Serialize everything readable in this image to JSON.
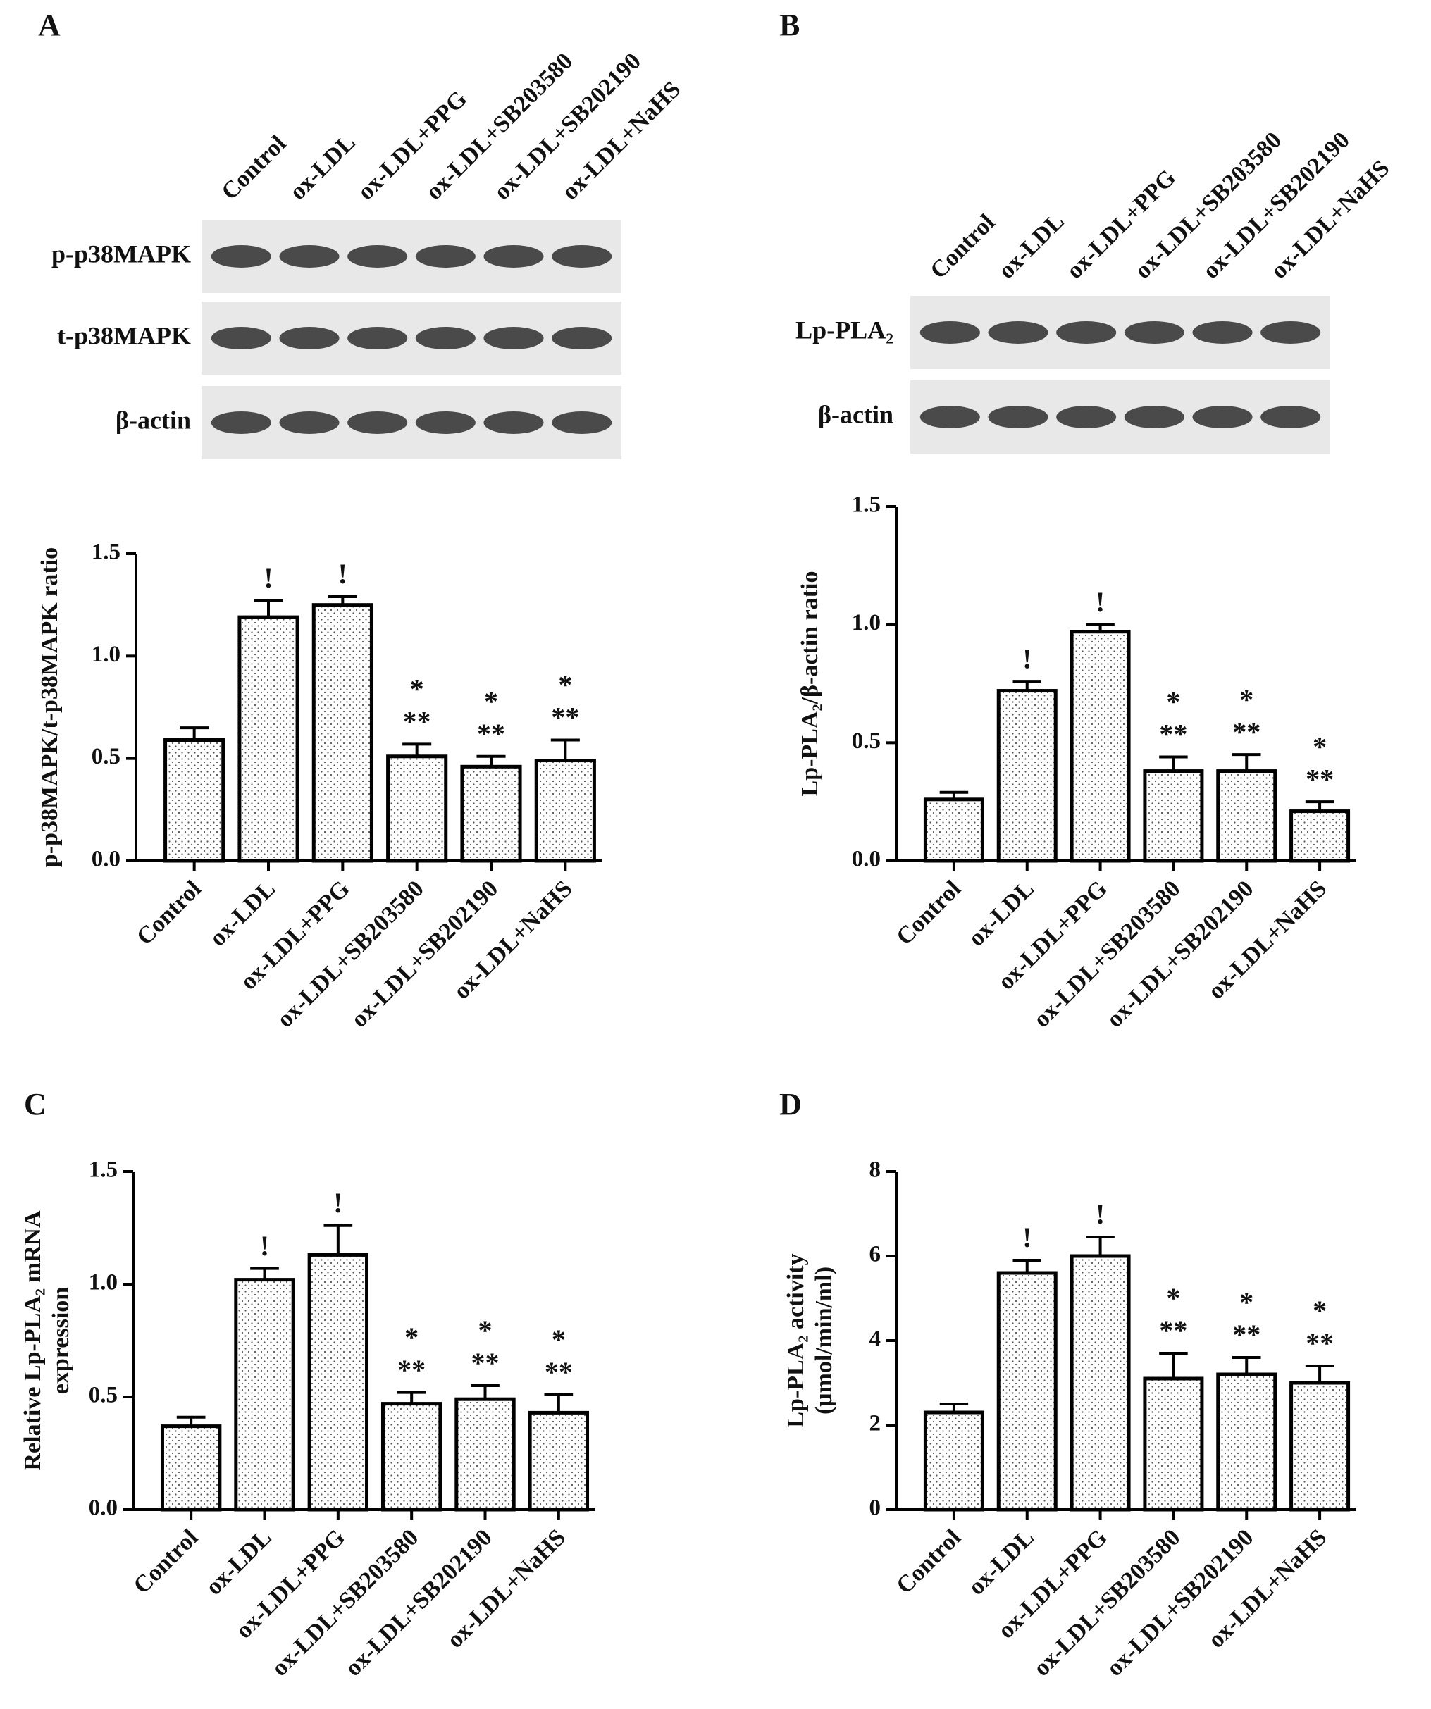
{
  "chart_data": [
    {
      "type": "bar",
      "panel": "A",
      "ylabel": [
        "p-p38MAPK/t-p38MAPK ratio"
      ],
      "blot_rows": [
        "p-p38MAPK",
        "t-p38MAPK",
        "β-actin"
      ],
      "categories": [
        "Control",
        "ox-LDL",
        "ox-LDL+PPG",
        "ox-LDL+SB203580",
        "ox-LDL+SB202190",
        "ox-LDL+NaHS"
      ],
      "values": [
        0.59,
        1.19,
        1.25,
        0.51,
        0.46,
        0.49
      ],
      "errors": [
        0.06,
        0.08,
        0.04,
        0.06,
        0.05,
        0.1
      ],
      "annotations": [
        null,
        [
          "!"
        ],
        [
          "!"
        ],
        [
          "**",
          "*"
        ],
        [
          "**",
          "*"
        ],
        [
          "**",
          "*"
        ]
      ],
      "ylim": [
        0,
        1.5
      ],
      "yticks": [
        {
          "value": 0,
          "label": "0.0"
        },
        {
          "value": 0.5,
          "label": "0.5"
        },
        {
          "value": 1,
          "label": "1.0"
        },
        {
          "value": 1.5,
          "label": "1.5"
        }
      ]
    },
    {
      "type": "bar",
      "panel": "B",
      "ylabel": [
        "Lp-PLA₂/β-actin ratio"
      ],
      "blot_rows": [
        "Lp-PLA₂",
        "β-actin"
      ],
      "categories": [
        "Control",
        "ox-LDL",
        "ox-LDL+PPG",
        "ox-LDL+SB203580",
        "ox-LDL+SB202190",
        "ox-LDL+NaHS"
      ],
      "values": [
        0.26,
        0.72,
        0.97,
        0.38,
        0.38,
        0.21
      ],
      "errors": [
        0.03,
        0.04,
        0.03,
        0.06,
        0.07,
        0.04
      ],
      "annotations": [
        null,
        [
          "!"
        ],
        [
          "!"
        ],
        [
          "**",
          "*"
        ],
        [
          "**",
          "*"
        ],
        [
          "**",
          "*"
        ]
      ],
      "ylim": [
        0,
        1.5
      ],
      "yticks": [
        {
          "value": 0,
          "label": "0.0"
        },
        {
          "value": 0.5,
          "label": "0.5"
        },
        {
          "value": 1,
          "label": "1.0"
        },
        {
          "value": 1.5,
          "label": "1.5"
        }
      ]
    },
    {
      "type": "bar",
      "panel": "C",
      "ylabel": [
        "Relative Lp-PLA₂ mRNA",
        "expression"
      ],
      "categories": [
        "Control",
        "ox-LDL",
        "ox-LDL+PPG",
        "ox-LDL+SB203580",
        "ox-LDL+SB202190",
        "ox-LDL+NaHS"
      ],
      "values": [
        0.37,
        1.02,
        1.13,
        0.47,
        0.49,
        0.43
      ],
      "errors": [
        0.04,
        0.05,
        0.13,
        0.05,
        0.06,
        0.08
      ],
      "annotations": [
        null,
        [
          "!"
        ],
        [
          "!"
        ],
        [
          "**",
          "*"
        ],
        [
          "**",
          "*"
        ],
        [
          "**",
          "*"
        ]
      ],
      "ylim": [
        0,
        1.5
      ],
      "yticks": [
        {
          "value": 0,
          "label": "0.0"
        },
        {
          "value": 0.5,
          "label": "0.5"
        },
        {
          "value": 1,
          "label": "1.0"
        },
        {
          "value": 1.5,
          "label": "1.5"
        }
      ]
    },
    {
      "type": "bar",
      "panel": "D",
      "ylabel": [
        "Lp-PLA₂ activity",
        "(μmol/min/ml)"
      ],
      "categories": [
        "Control",
        "ox-LDL",
        "ox-LDL+PPG",
        "ox-LDL+SB203580",
        "ox-LDL+SB202190",
        "ox-LDL+NaHS"
      ],
      "values": [
        2.3,
        5.6,
        6.0,
        3.1,
        3.2,
        3.0
      ],
      "errors": [
        0.2,
        0.3,
        0.45,
        0.6,
        0.4,
        0.4
      ],
      "annotations": [
        null,
        [
          "!"
        ],
        [
          "!"
        ],
        [
          "**",
          "*"
        ],
        [
          "**",
          "*"
        ],
        [
          "**",
          "*"
        ]
      ],
      "ylim": [
        0,
        8
      ],
      "yticks": [
        0,
        2,
        4,
        6,
        8
      ]
    }
  ]
}
